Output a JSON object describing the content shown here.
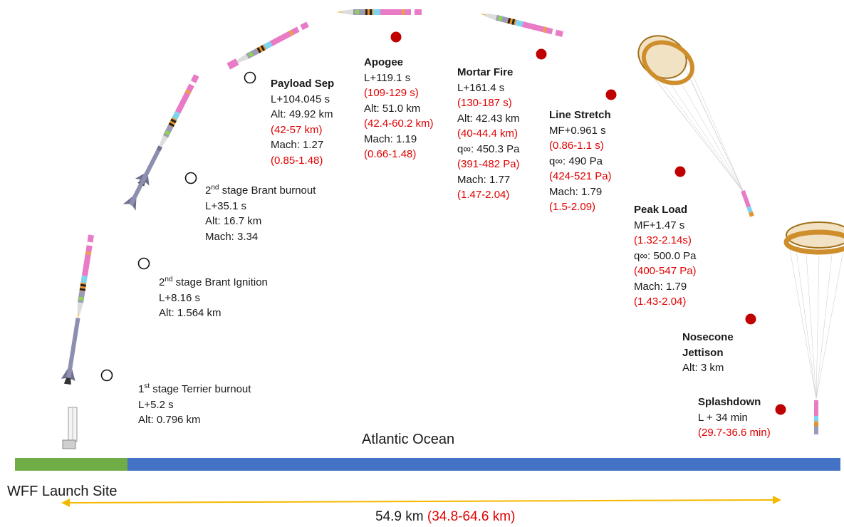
{
  "colors": {
    "uncertainty": "#e00000",
    "land": "#70ad47",
    "ocean": "#4472c4",
    "arrow": "#f5b800",
    "event_marker": "#c00000"
  },
  "events": {
    "terrier_burnout": {
      "title_num": "1",
      "title_sup": "st",
      "title_rest": " stage Terrier burnout",
      "lines": [
        "L+5.2 s",
        "Alt: 0.796 km"
      ]
    },
    "brant_ignition": {
      "title_num": "2",
      "title_sup": "nd",
      "title_rest": " stage Brant Ignition",
      "lines": [
        "L+8.16 s",
        "Alt: 1.564 km"
      ]
    },
    "brant_burnout": {
      "title_num": "2",
      "title_sup": "nd",
      "title_rest": " stage Brant burnout",
      "lines": [
        "L+35.1 s",
        "Alt: 16.7 km",
        "Mach: 3.34"
      ]
    },
    "payload_sep": {
      "title": "Payload Sep",
      "lines": [
        "L+104.045 s",
        "Alt: 49.92 km",
        "(42-57 km)",
        "Mach: 1.27",
        "(0.85-1.48)"
      ]
    },
    "apogee": {
      "title": "Apogee",
      "lines": [
        "L+119.1 s",
        "(109-129 s)",
        "Alt: 51.0 km",
        "(42.4-60.2 km)",
        "Mach: 1.19",
        "(0.66-1.48)"
      ]
    },
    "mortar_fire": {
      "title": "Mortar Fire",
      "lines": [
        "L+161.4 s",
        "(130-187 s)",
        "Alt: 42.43 km",
        "(40-44.4 km)",
        "q∞: 450.3 Pa",
        "(391-482 Pa)",
        "Mach: 1.77",
        "(1.47-2.04)"
      ]
    },
    "line_stretch": {
      "title": "Line Stretch",
      "lines": [
        "MF+0.961 s",
        "(0.86-1.1 s)",
        "q∞: 490 Pa",
        "(424-521 Pa)",
        "Mach: 1.79",
        "(1.5-2.09)"
      ]
    },
    "peak_load": {
      "title": "Peak Load",
      "lines": [
        "MF+1.47 s",
        "(1.32-2.14s)",
        "q∞: 500.0 Pa",
        "(400-547 Pa)",
        "Mach: 1.79",
        "(1.43-2.04)"
      ]
    },
    "nosecone_jettison": {
      "title1": "Nosecone",
      "title2": "Jettison",
      "lines": [
        "Alt: 3 km"
      ]
    },
    "splashdown": {
      "title": "Splashdown",
      "lines": [
        "L + 34 min",
        "(29.7-36.6 min)"
      ]
    }
  },
  "ground": {
    "ocean_label": "Atlantic Ocean",
    "site_label": "WFF Launch Site"
  },
  "range": {
    "value": "54.9 km",
    "uncertainty": "(34.8-64.6 km)"
  }
}
